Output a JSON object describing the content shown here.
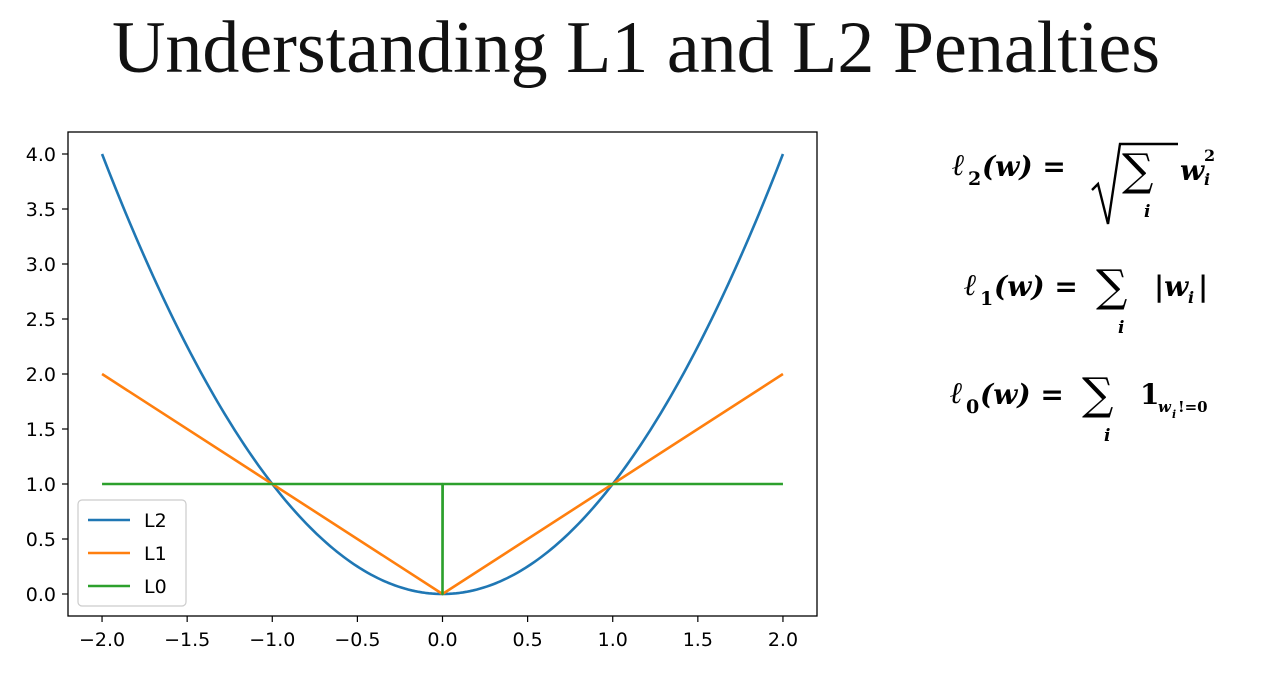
{
  "page": {
    "title": "Understanding L1 and L2 Penalties"
  },
  "formulas": {
    "l2": {
      "lhs": "ℓ",
      "sub": "2",
      "arg": "(w) =",
      "sum_index": "i",
      "term": "w",
      "term_sup": "2",
      "term_sub": "i"
    },
    "l1": {
      "lhs": "ℓ",
      "sub": "1",
      "arg": "(w) =",
      "sum_index": "i",
      "term": "|w",
      "term_sub": "i",
      "term_end": "|"
    },
    "l0": {
      "lhs": "ℓ",
      "sub": "0",
      "arg": "(w) =",
      "sum_index": "i",
      "term": "1",
      "term_sub": "w",
      "term_sub_sub": "i",
      "term_sub_end": "!=0"
    }
  },
  "chart_data": {
    "type": "line",
    "title": "",
    "xlabel": "",
    "ylabel": "",
    "xlim": [
      -2.2,
      2.2
    ],
    "ylim": [
      -0.2,
      4.2
    ],
    "xticks": [
      -2.0,
      -1.5,
      -1.0,
      -0.5,
      0.0,
      0.5,
      1.0,
      1.5,
      2.0
    ],
    "xtick_labels": [
      "−2.0",
      "−1.5",
      "−1.0",
      "−0.5",
      "0.0",
      "0.5",
      "1.0",
      "1.5",
      "2.0"
    ],
    "yticks": [
      0.0,
      0.5,
      1.0,
      1.5,
      2.0,
      2.5,
      3.0,
      3.5,
      4.0
    ],
    "ytick_labels": [
      "0.0",
      "0.5",
      "1.0",
      "1.5",
      "2.0",
      "2.5",
      "3.0",
      "3.5",
      "4.0"
    ],
    "grid": false,
    "legend_position": "lower-left",
    "series": [
      {
        "name": "L2",
        "color": "#1f77b4",
        "x": [
          -2.0,
          -1.8,
          -1.6,
          -1.4,
          -1.2,
          -1.0,
          -0.8,
          -0.6,
          -0.4,
          -0.2,
          0.0,
          0.2,
          0.4,
          0.6,
          0.8,
          1.0,
          1.2,
          1.4,
          1.6,
          1.8,
          2.0
        ],
        "y": [
          4.0,
          3.24,
          2.56,
          1.96,
          1.44,
          1.0,
          0.64,
          0.36,
          0.16,
          0.04,
          0.0,
          0.04,
          0.16,
          0.36,
          0.64,
          1.0,
          1.44,
          1.96,
          2.56,
          3.24,
          4.0
        ]
      },
      {
        "name": "L1",
        "color": "#ff7f0e",
        "x": [
          -2.0,
          0.0,
          2.0
        ],
        "y": [
          2.0,
          0.0,
          2.0
        ]
      },
      {
        "name": "L0",
        "color": "#2ca02c",
        "x": [
          -2.0,
          -0.001,
          0.0,
          0.0,
          0.001,
          2.0
        ],
        "y": [
          1.0,
          1.0,
          1.0,
          0.0,
          1.0,
          1.0
        ]
      }
    ]
  }
}
